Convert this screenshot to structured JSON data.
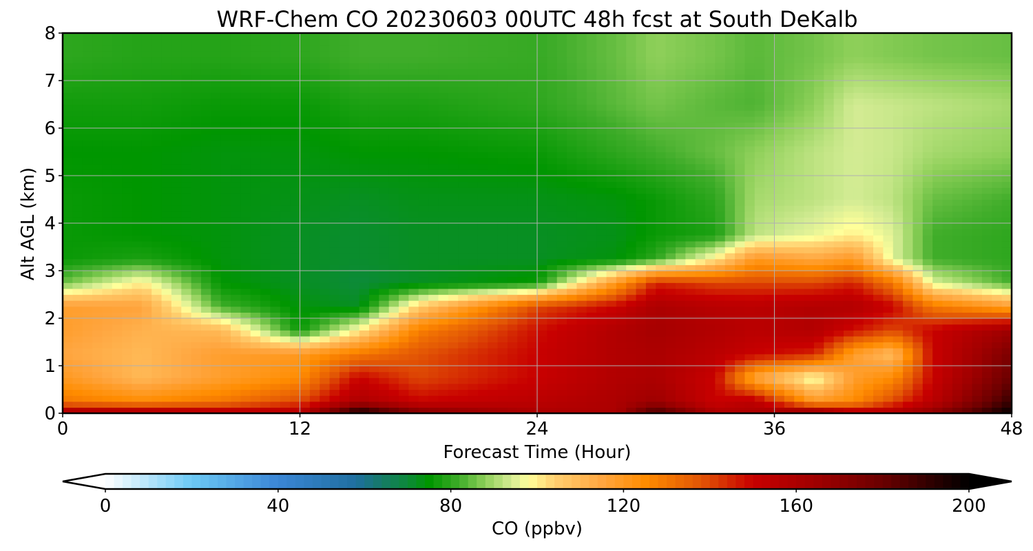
{
  "chart_data": {
    "type": "heatmap",
    "title": "WRF-Chem CO  20230603 00UTC 48h fcst at South DeKalb",
    "xlabel": "Forecast Time (Hour)",
    "ylabel": "Alt AGL (km)",
    "xlim": [
      0,
      48
    ],
    "ylim": [
      0,
      8
    ],
    "xticks": [
      0,
      12,
      24,
      36,
      48
    ],
    "yticks": [
      0,
      1,
      2,
      3,
      4,
      5,
      6,
      7,
      8
    ],
    "grid": true,
    "colorbar": {
      "label": "CO  (ppbv)",
      "min": 0,
      "max": 200,
      "ticks": [
        0,
        40,
        80,
        120,
        160,
        200
      ],
      "extend": "both",
      "color_stops": [
        {
          "value": 0,
          "color": "#ffffff"
        },
        {
          "value": 20,
          "color": "#6cc9f5"
        },
        {
          "value": 40,
          "color": "#3a86d6"
        },
        {
          "value": 58,
          "color": "#1f6fa0"
        },
        {
          "value": 64,
          "color": "#157a66"
        },
        {
          "value": 70,
          "color": "#0d8a3a"
        },
        {
          "value": 75,
          "color": "#009600"
        },
        {
          "value": 82,
          "color": "#40ad2a"
        },
        {
          "value": 88,
          "color": "#8fd05a"
        },
        {
          "value": 94,
          "color": "#d4ec94"
        },
        {
          "value": 98,
          "color": "#ffff9a"
        },
        {
          "value": 104,
          "color": "#ffd070"
        },
        {
          "value": 115,
          "color": "#ffa640"
        },
        {
          "value": 125,
          "color": "#ff8c00"
        },
        {
          "value": 138,
          "color": "#e25505"
        },
        {
          "value": 150,
          "color": "#c80000"
        },
        {
          "value": 165,
          "color": "#9e0000"
        },
        {
          "value": 180,
          "color": "#6a0000"
        },
        {
          "value": 192,
          "color": "#2a0000"
        },
        {
          "value": 200,
          "color": "#000000"
        }
      ]
    },
    "x": [
      0,
      4,
      8,
      12,
      15,
      18,
      24,
      28,
      30,
      33,
      35,
      38,
      40,
      42,
      44,
      48
    ],
    "y": [
      0,
      0.25,
      0.75,
      1.25,
      1.75,
      2.25,
      2.75,
      3.25,
      3.75,
      4.5,
      5.5,
      6.5,
      7.5
    ],
    "z": [
      [
        165,
        165,
        160,
        158,
        200,
        175,
        160,
        160,
        190,
        160,
        160,
        175,
        160,
        160,
        170,
        200
      ],
      [
        130,
        125,
        130,
        140,
        160,
        150,
        155,
        160,
        165,
        150,
        155,
        120,
        125,
        140,
        155,
        190
      ],
      [
        120,
        110,
        118,
        125,
        150,
        140,
        150,
        158,
        160,
        150,
        115,
        95,
        118,
        125,
        150,
        180
      ],
      [
        115,
        110,
        118,
        120,
        130,
        138,
        150,
        158,
        160,
        155,
        150,
        145,
        118,
        108,
        150,
        175
      ],
      [
        118,
        112,
        110,
        76,
        100,
        128,
        148,
        158,
        162,
        158,
        155,
        158,
        148,
        140,
        150,
        165
      ],
      [
        118,
        116,
        82,
        74,
        72,
        105,
        140,
        150,
        160,
        156,
        155,
        158,
        158,
        150,
        130,
        118
      ],
      [
        85,
        100,
        75,
        72,
        70,
        72,
        76,
        120,
        145,
        140,
        140,
        140,
        145,
        130,
        95,
        82
      ],
      [
        76,
        78,
        74,
        72,
        71,
        72,
        72,
        74,
        80,
        100,
        120,
        115,
        120,
        95,
        82,
        80
      ],
      [
        76,
        75,
        74,
        72,
        71,
        72,
        72,
        73,
        76,
        78,
        92,
        96,
        100,
        95,
        82,
        80
      ],
      [
        76,
        75,
        74,
        73,
        72,
        73,
        73,
        74,
        76,
        80,
        90,
        92,
        94,
        92,
        85,
        82
      ],
      [
        75,
        75,
        74,
        74,
        75,
        75,
        76,
        80,
        82,
        85,
        88,
        92,
        94,
        93,
        90,
        88
      ],
      [
        77,
        77,
        76,
        76,
        78,
        78,
        80,
        84,
        86,
        84,
        83,
        88,
        94,
        93,
        92,
        90
      ],
      [
        80,
        79,
        79,
        80,
        82,
        82,
        81,
        85,
        88,
        86,
        84,
        86,
        88,
        87,
        86,
        85
      ]
    ]
  }
}
